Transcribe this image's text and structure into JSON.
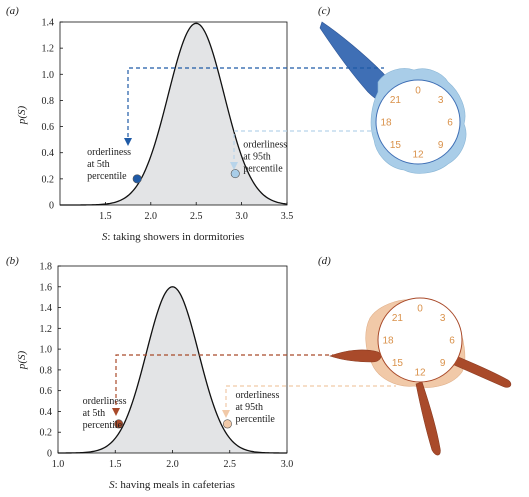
{
  "chart_data": [
    {
      "panel": "(a)",
      "type": "area",
      "xlabel_var": "S",
      "xlabel_text": ": taking showers in dormitories",
      "ylabel": "p(S)",
      "xlim": [
        1.0,
        3.5
      ],
      "ylim": [
        0,
        1.4
      ],
      "xticks": [
        "1.5",
        "2.0",
        "2.5",
        "3.0",
        "3.5"
      ],
      "yticks": [
        "0",
        "0.2",
        "0.4",
        "0.6",
        "0.8",
        "1.0",
        "1.2",
        "1.4"
      ],
      "distribution": {
        "mean": 2.5,
        "peak": 1.39
      },
      "markers": [
        {
          "x": 1.85,
          "y": 0.2,
          "color": "#1f5aa6",
          "label": [
            "orderliness",
            "at 5th",
            "percentile"
          ]
        },
        {
          "x": 2.93,
          "y": 0.24,
          "color": "#a9cde8",
          "label": [
            "orderliness",
            "at 95th",
            "percentile"
          ]
        }
      ]
    },
    {
      "panel": "(b)",
      "type": "area",
      "xlabel_var": "S",
      "xlabel_text": ": having meals in cafeterias",
      "ylabel": "p(S)",
      "xlim": [
        1.0,
        3.0
      ],
      "ylim": [
        0,
        1.8
      ],
      "xticks": [
        "1.0",
        "1.5",
        "2.0",
        "2.5",
        "3.0"
      ],
      "yticks": [
        "0",
        "0.2",
        "0.4",
        "0.6",
        "0.8",
        "1.0",
        "1.2",
        "1.4",
        "1.6",
        "1.8"
      ],
      "distribution": {
        "mean": 2.0,
        "peak": 1.6
      },
      "markers": [
        {
          "x": 1.53,
          "y": 0.28,
          "color": "#a94a2a",
          "label": [
            "orderliness",
            "at 5th",
            "percentile"
          ]
        },
        {
          "x": 2.48,
          "y": 0.28,
          "color": "#f1c9a8",
          "label": [
            "orderliness",
            "at 95th",
            "percentile"
          ]
        }
      ]
    }
  ],
  "clocks": [
    {
      "panel": "(c)",
      "hours": [
        "0",
        "3",
        "6",
        "9",
        "12",
        "15",
        "18",
        "21"
      ],
      "dark": "#3f6fb5",
      "light": "#a9cde8"
    },
    {
      "panel": "(d)",
      "hours": [
        "0",
        "3",
        "6",
        "9",
        "12",
        "15",
        "18",
        "21"
      ],
      "dark": "#a94a2a",
      "light": "#f1c9a8"
    }
  ]
}
